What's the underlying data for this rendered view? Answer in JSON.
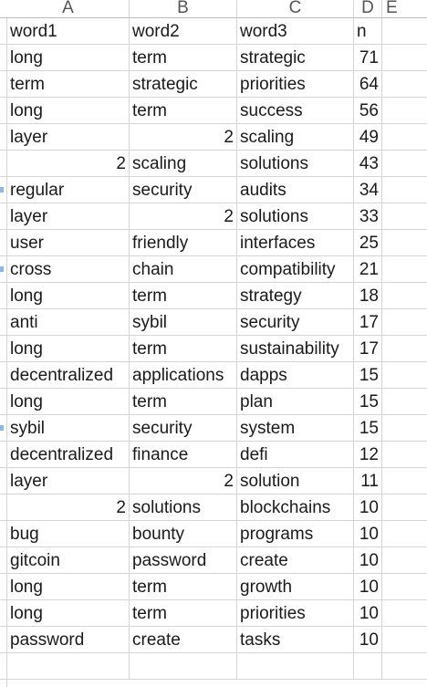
{
  "columns": [
    "A",
    "B",
    "C",
    "D",
    "E"
  ],
  "rows": [
    [
      "word1",
      "word2",
      "word3",
      "n"
    ],
    [
      "long",
      "term",
      "strategic",
      "71"
    ],
    [
      "term",
      "strategic",
      "priorities",
      "64"
    ],
    [
      "long",
      "term",
      "success",
      "56"
    ],
    [
      "layer",
      "2",
      "scaling",
      "49"
    ],
    [
      "2",
      "scaling",
      "solutions",
      "43"
    ],
    [
      "regular",
      "security",
      "audits",
      "34"
    ],
    [
      "layer",
      "2",
      "solutions",
      "33"
    ],
    [
      "user",
      "friendly",
      "interfaces",
      "25"
    ],
    [
      "cross",
      "chain",
      "compatibility",
      "21"
    ],
    [
      "long",
      "term",
      "strategy",
      "18"
    ],
    [
      "anti",
      "sybil",
      "security",
      "17"
    ],
    [
      "long",
      "term",
      "sustainability",
      "17"
    ],
    [
      "decentralized",
      "applications",
      "dapps",
      "15"
    ],
    [
      "long",
      "term",
      "plan",
      "15"
    ],
    [
      "sybil",
      "security",
      "system",
      "15"
    ],
    [
      "decentralized",
      "finance",
      "defi",
      "12"
    ],
    [
      "layer",
      "2",
      "solution",
      "11"
    ],
    [
      "2",
      "solutions",
      "blockchains",
      "10"
    ],
    [
      "bug",
      "bounty",
      "programs",
      "10"
    ],
    [
      "gitcoin",
      "password",
      "create",
      "10"
    ],
    [
      "long",
      "term",
      "growth",
      "10"
    ],
    [
      "long",
      "term",
      "priorities",
      "10"
    ],
    [
      "password",
      "create",
      "tasks",
      "10"
    ],
    [
      "",
      "",
      "",
      ""
    ]
  ]
}
